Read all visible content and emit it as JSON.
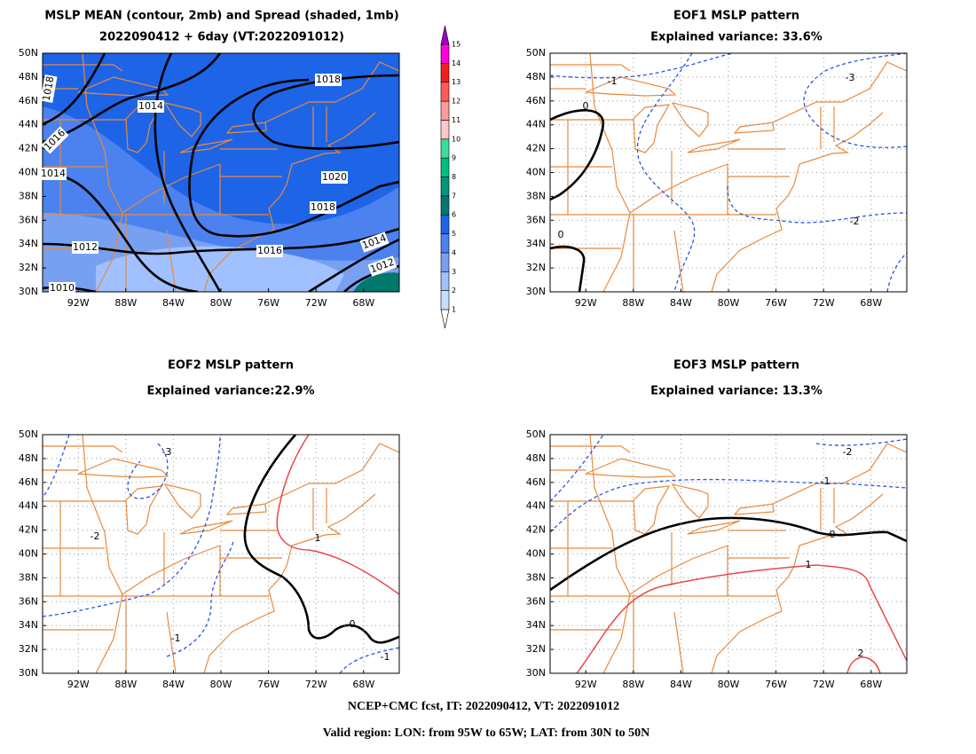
{
  "panels": [
    {
      "title": "MSLP MEAN (contour, 2mb) and Spread (shaded, 1mb)",
      "subtitle": "2022090412 + 6day (VT:2022091012)",
      "grid": false,
      "contour_labels": [
        "1018",
        "1014",
        "1018",
        "1016",
        "1014",
        "1020",
        "1018",
        "1012",
        "1016",
        "1014",
        "1012",
        "1010"
      ]
    },
    {
      "title": "EOF1 MSLP pattern",
      "subtitle": "Explained variance: 33.6%",
      "grid": true,
      "contour_labels": [
        "-1",
        "-3",
        "0",
        "0",
        "-2"
      ]
    },
    {
      "title": "EOF2 MSLP pattern",
      "subtitle": "Explained variance:22.9%",
      "grid": true,
      "contour_labels": [
        "-3",
        "-2",
        "1",
        "-1",
        "0",
        "-1"
      ]
    },
    {
      "title": "EOF3 MSLP pattern",
      "subtitle": "Explained variance: 13.3%",
      "grid": true,
      "contour_labels": [
        "-2",
        "-1",
        "0",
        "1",
        "2"
      ]
    }
  ],
  "lat_labels": [
    "50N",
    "48N",
    "46N",
    "44N",
    "42N",
    "40N",
    "38N",
    "36N",
    "34N",
    "32N",
    "30N"
  ],
  "lon_labels": [
    "92W",
    "88W",
    "84W",
    "80W",
    "76W",
    "72W",
    "68W"
  ],
  "colorbar": {
    "labels": [
      1,
      2,
      3,
      4,
      5,
      6,
      7,
      8,
      9,
      10,
      11,
      12,
      13,
      14,
      15
    ],
    "colors": [
      "#ffffff",
      "#c8dcff",
      "#a0c0ff",
      "#78a0f0",
      "#4b82f0",
      "#1e64e6",
      "#00786e",
      "#009678",
      "#00be82",
      "#3cdc96",
      "#ffc8c8",
      "#ff9a9a",
      "#ff5a5a",
      "#f01e1e",
      "#ff00dc",
      "#a000c8"
    ]
  },
  "footer": [
    "NCEP+CMC fcst, IT: 2022090412, VT: 2022091012",
    "Valid region: LON: from 95W to 65W; LAT: from 30N to 50N"
  ]
}
